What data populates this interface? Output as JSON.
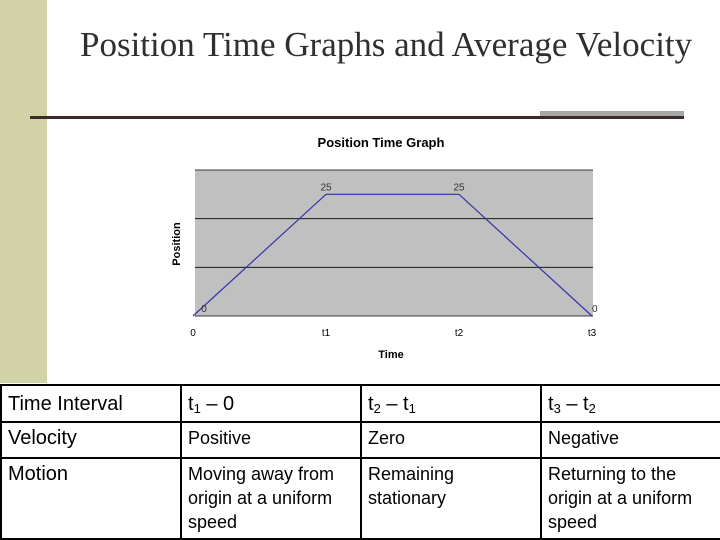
{
  "slide": {
    "title": "Position Time Graphs and Average Velocity"
  },
  "chart_data": {
    "type": "line",
    "title": "Position Time Graph",
    "xlabel": "Time",
    "ylabel": "Position",
    "categories": [
      "0",
      "t1",
      "t2",
      "t3"
    ],
    "values": [
      0,
      25,
      25,
      0
    ],
    "data_labels": [
      "0",
      "25",
      "25",
      "0"
    ],
    "ylim": [
      0,
      30
    ],
    "grid": true,
    "legend": "none",
    "colors": {
      "line": "#3333aa",
      "plot_bg": "#c0c0c0",
      "grid": "#000000"
    }
  },
  "table": {
    "rows": [
      {
        "label": "Time Interval",
        "cells": [
          {
            "main": "t",
            "sub": "1",
            "tail_main": " – 0",
            "tail_sub": ""
          },
          {
            "main": "t",
            "sub": "2",
            "tail_main": " – t",
            "tail_sub": "1"
          },
          {
            "main": "t",
            "sub": "3",
            "tail_main": " – t",
            "tail_sub": "2"
          }
        ]
      },
      {
        "label": "Velocity",
        "cells": [
          "Positive",
          "Zero",
          "Negative"
        ]
      },
      {
        "label": "Motion",
        "cells": [
          "Moving away from origin at a uniform speed",
          "Remaining stationary",
          "Returning to the origin at a uniform speed"
        ]
      }
    ]
  }
}
